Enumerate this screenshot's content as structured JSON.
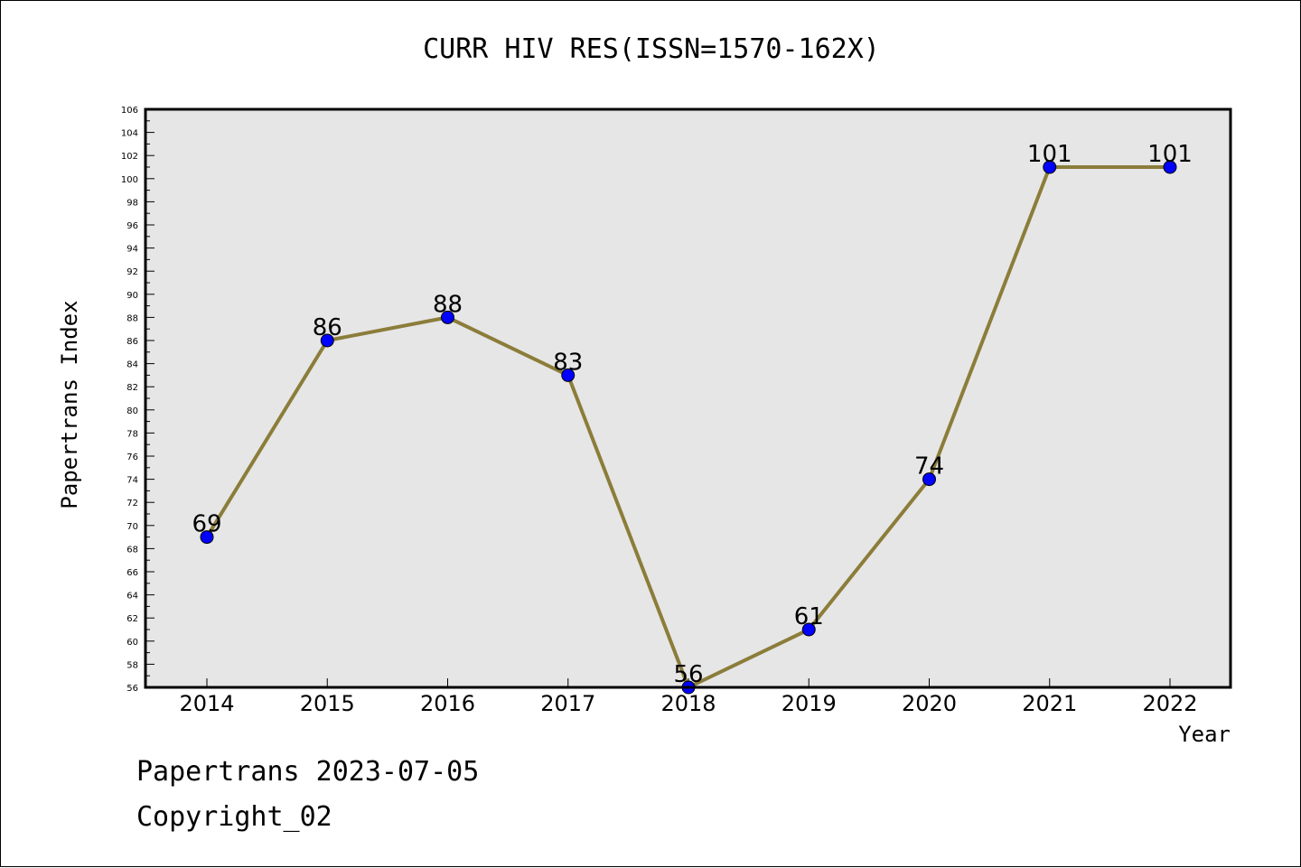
{
  "chart_data": {
    "type": "line",
    "title": "CURR HIV RES(ISSN=1570-162X)",
    "xlabel": "Year",
    "ylabel": "Papertrans Index",
    "categories": [
      "2014",
      "2015",
      "2016",
      "2017",
      "2018",
      "2019",
      "2020",
      "2021",
      "2022"
    ],
    "series": [
      {
        "values": [
          69,
          86,
          88,
          83,
          56,
          61,
          74,
          101,
          101
        ]
      }
    ],
    "data_labels": [
      "69",
      "86",
      "88",
      "83",
      "56",
      "61",
      "74",
      "101",
      "101"
    ],
    "ylim": [
      56,
      106
    ],
    "yticks": [
      "56",
      "58",
      "60",
      "62",
      "64",
      "66",
      "68",
      "70",
      "72",
      "74",
      "76",
      "78",
      "80",
      "82",
      "84",
      "86",
      "88",
      "90",
      "92",
      "94",
      "96",
      "98",
      "100",
      "102",
      "104",
      "106"
    ],
    "grid": false,
    "colors": {
      "plot_background": "#e6e6e6",
      "line": "#8b7d3a",
      "marker": "#0000ff"
    }
  },
  "footer": {
    "date_line": "Papertrans 2023-07-05",
    "copyright_line": "Copyright_02"
  }
}
